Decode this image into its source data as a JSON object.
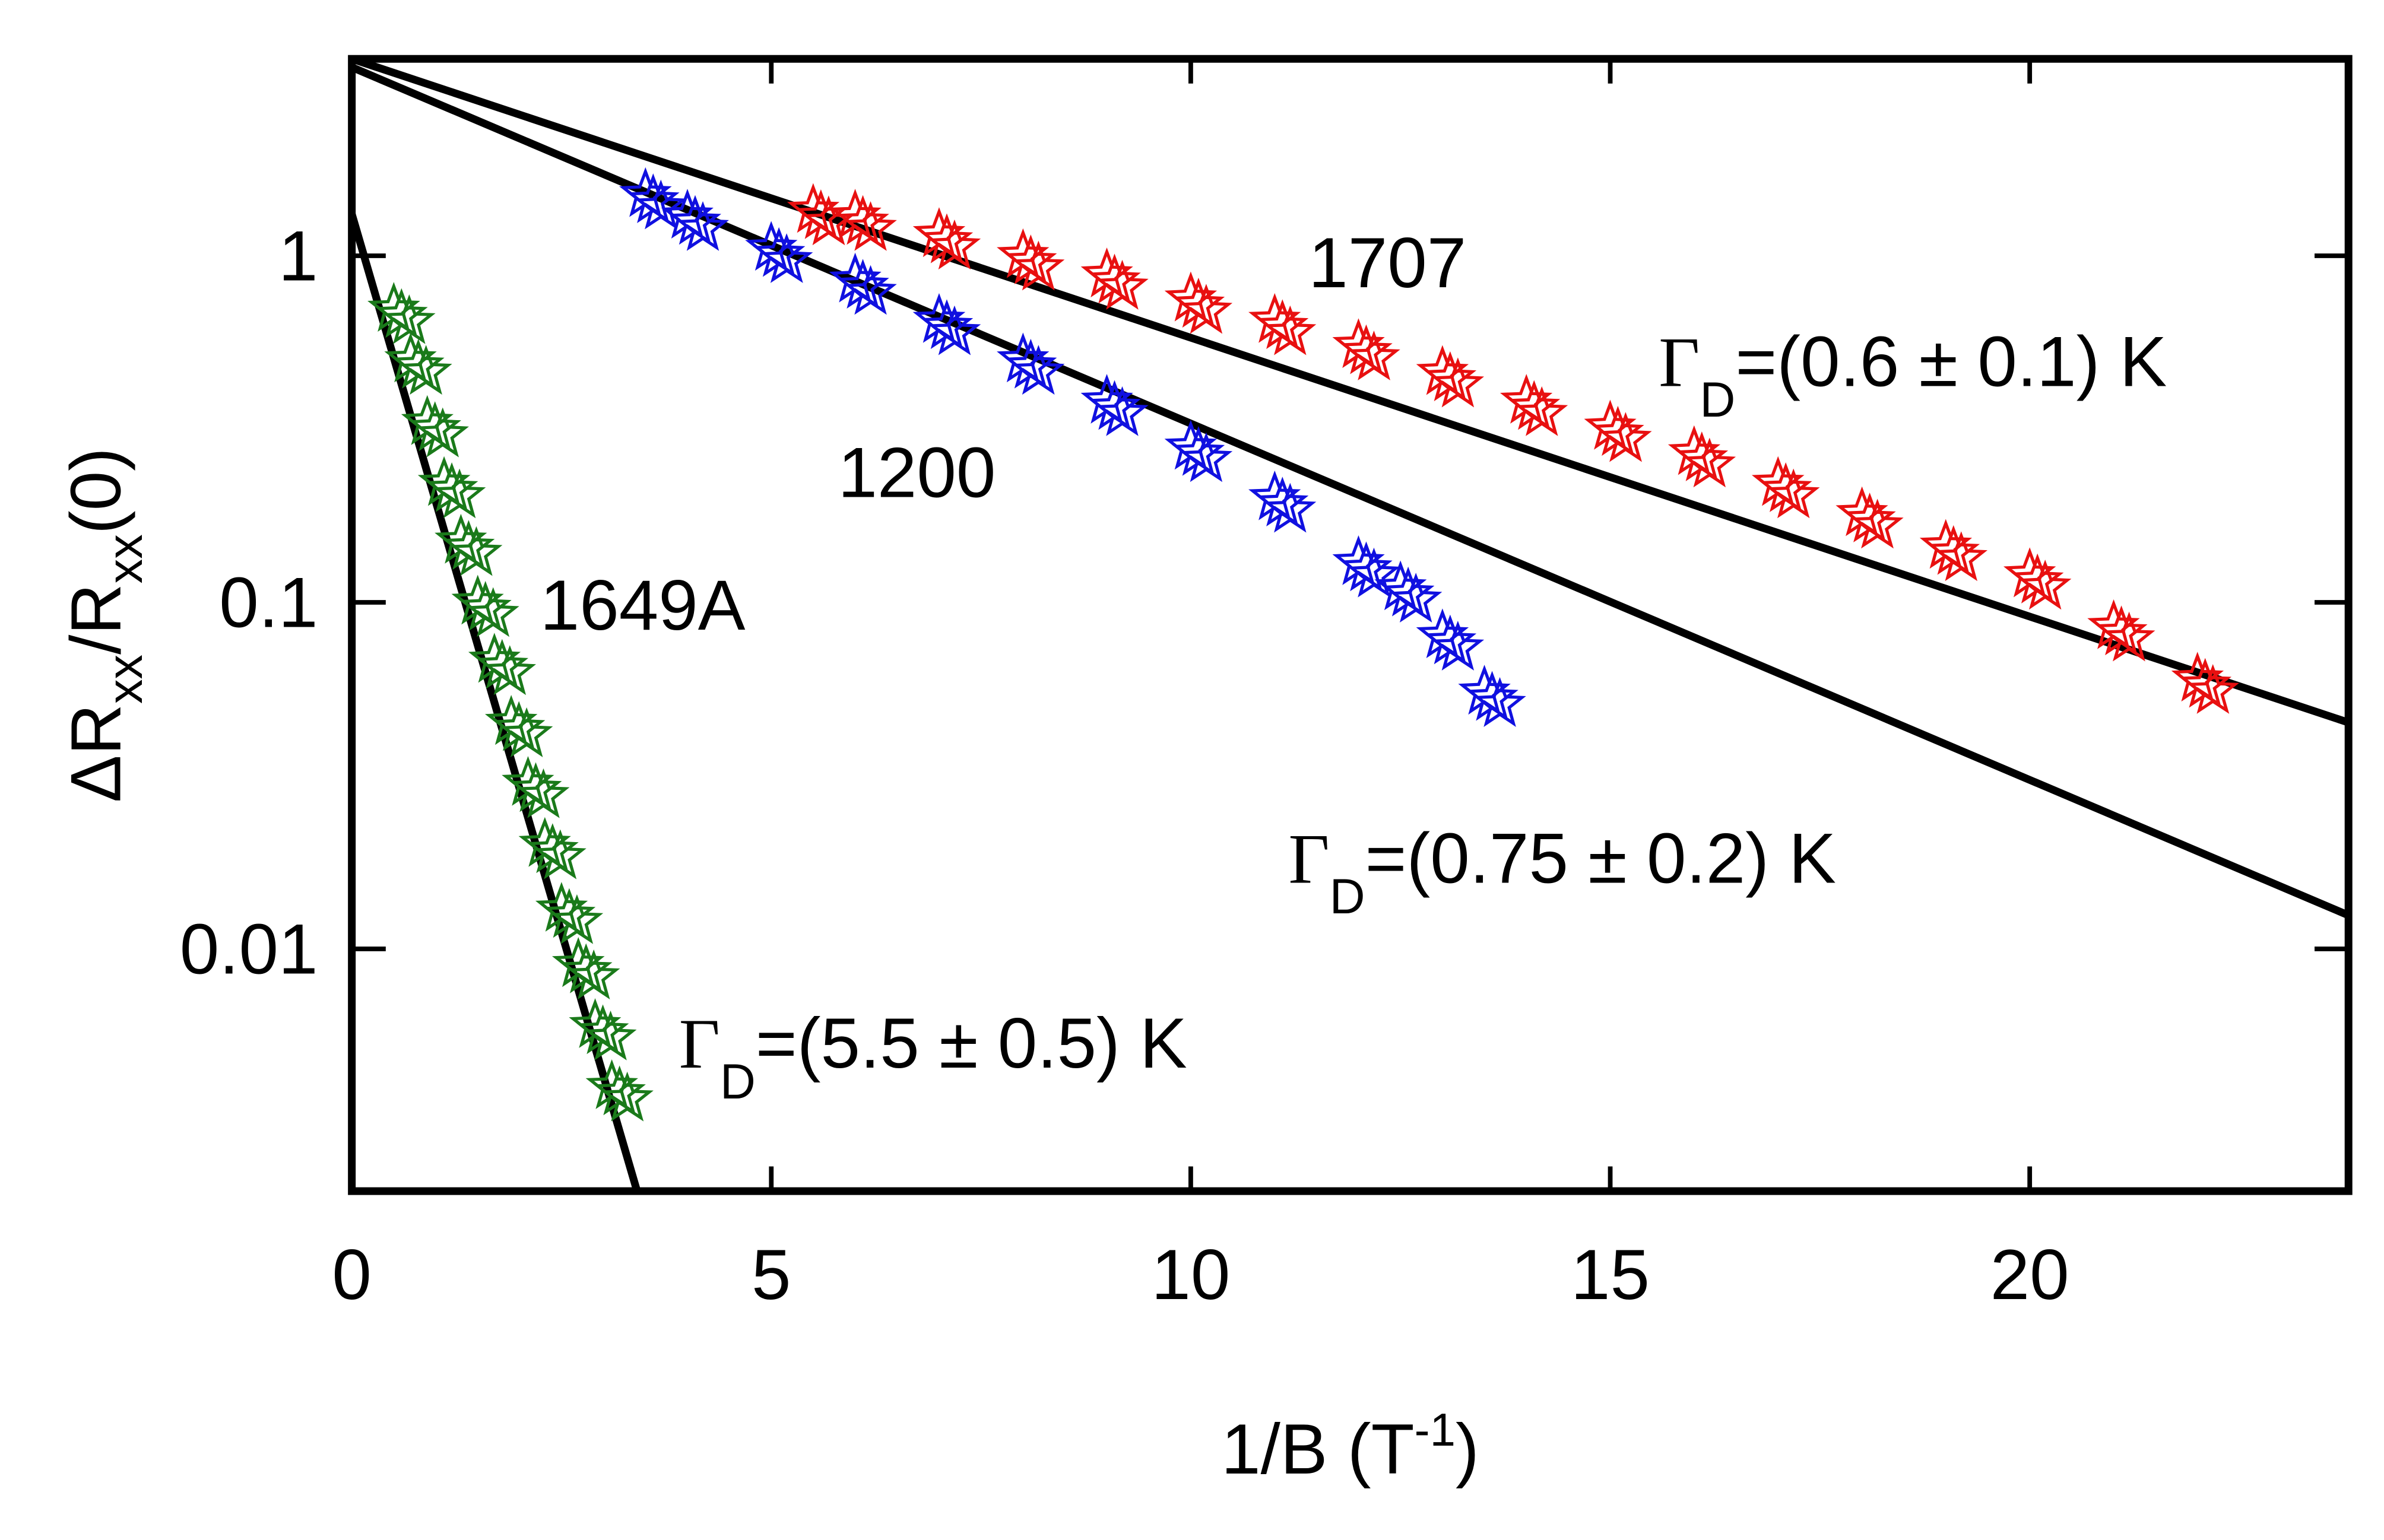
{
  "chart_data": {
    "type": "scatter",
    "xlabel": [
      "1/B (T",
      "-1",
      ")"
    ],
    "ylabel": [
      "ΔR",
      "xx",
      "/R",
      "xx",
      "(0)"
    ],
    "xlim": [
      0,
      23.8
    ],
    "xticks": [
      0,
      5,
      10,
      15,
      20
    ],
    "ylim": [
      0.002,
      3.7
    ],
    "ylog": true,
    "yticks": [
      0.01,
      0.1,
      1
    ],
    "series": [
      {
        "name": "1649A",
        "color": "#1a7a1a",
        "x": [
          0.5,
          0.7,
          0.9,
          1.1,
          1.3,
          1.5,
          1.7,
          1.9,
          2.1,
          2.3,
          2.5,
          2.7,
          2.9,
          3.1
        ],
        "values": [
          0.7,
          0.5,
          0.33,
          0.22,
          0.15,
          0.1,
          0.068,
          0.045,
          0.03,
          0.02,
          0.013,
          0.009,
          0.006,
          0.004
        ]
      },
      {
        "name": "1200",
        "color": "#1010e0",
        "x": [
          3.5,
          4,
          5,
          6,
          7,
          8,
          9,
          10,
          11,
          12,
          12.5,
          13,
          13.5
        ],
        "values": [
          1.5,
          1.3,
          1.05,
          0.85,
          0.65,
          0.5,
          0.38,
          0.28,
          0.2,
          0.13,
          0.11,
          0.08,
          0.055
        ]
      },
      {
        "name": "1707",
        "color": "#e81010",
        "x": [
          5.5,
          6,
          7,
          8,
          9,
          10,
          11,
          12,
          13,
          14,
          15,
          16,
          17,
          18,
          19,
          20,
          21,
          22
        ],
        "values": [
          1.35,
          1.3,
          1.15,
          1.0,
          0.88,
          0.75,
          0.65,
          0.55,
          0.46,
          0.38,
          0.32,
          0.27,
          0.22,
          0.18,
          0.145,
          0.12,
          0.085,
          0.06
        ]
      }
    ],
    "lines": [
      {
        "color": "#000000",
        "x": [
          0,
          3.4
        ],
        "values": [
          1.32,
          0.002
        ]
      },
      {
        "color": "#000000",
        "x": [
          0,
          23.8
        ],
        "values": [
          3.5,
          0.0125
        ]
      },
      {
        "color": "#000000",
        "x": [
          0,
          23.8
        ],
        "values": [
          3.7,
          0.045
        ]
      }
    ],
    "annotations": [
      [
        "Γ",
        "D",
        "=(5.5 ± 0.5) K"
      ],
      [
        "Γ",
        "D",
        "=(0.75 ± 0.2) K"
      ],
      [
        "Γ",
        "D",
        "=(0.6 ± 0.1) K"
      ]
    ]
  }
}
